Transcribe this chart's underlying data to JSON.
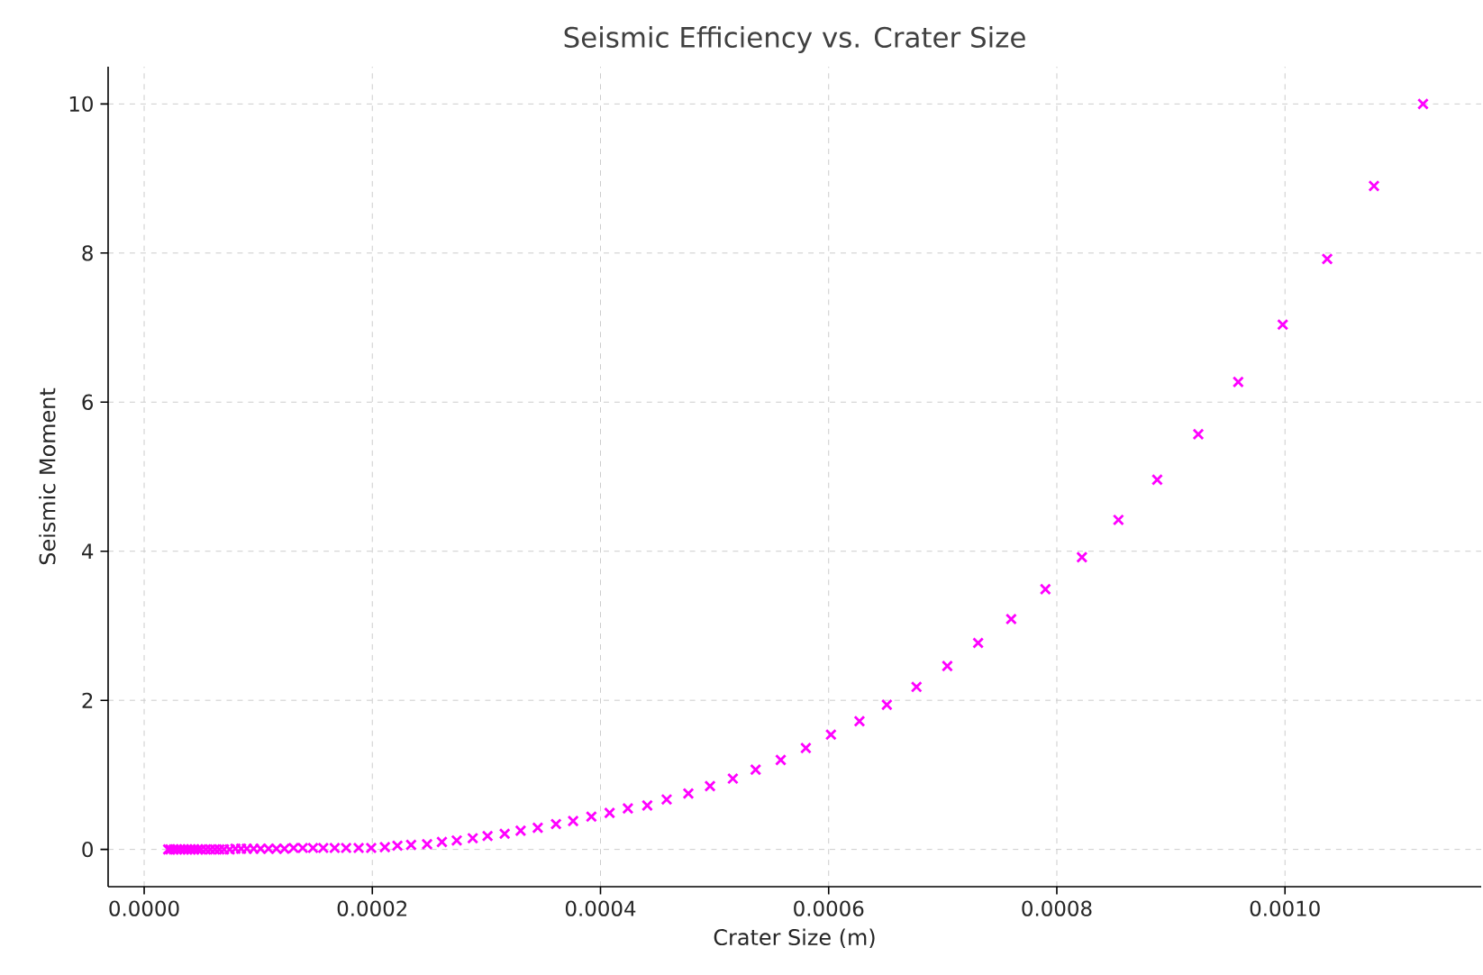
{
  "chart_data": {
    "type": "scatter",
    "title": "Seismic Efficiency vs. Crater Size",
    "xlabel": "Crater Size (m)",
    "ylabel": "Seismic Moment",
    "x": [
      2.1e-05,
      2.3e-05,
      2.6e-05,
      2.9e-05,
      3.2e-05,
      3.5e-05,
      3.8e-05,
      4.1e-05,
      4.4e-05,
      4.7e-05,
      5e-05,
      5.4e-05,
      5.8e-05,
      6.2e-05,
      6.6e-05,
      7e-05,
      7.5e-05,
      8e-05,
      8.5e-05,
      9e-05,
      9.6e-05,
      0.000102,
      0.000109,
      0.000116,
      0.000123,
      0.000131,
      0.000139,
      0.000148,
      0.000157,
      0.000167,
      0.000177,
      0.000188,
      0.000199,
      0.000211,
      0.000222,
      0.000234,
      0.000248,
      0.000261,
      0.000274,
      0.000288,
      0.000301,
      0.000316,
      0.00033,
      0.000345,
      0.000361,
      0.000376,
      0.000392,
      0.000408,
      0.000424,
      0.000441,
      0.000458,
      0.000477,
      0.000496,
      0.000516,
      0.000536,
      0.000558,
      0.00058,
      0.000602,
      0.000627,
      0.000651,
      0.000677,
      0.000704,
      0.000731,
      0.00076,
      0.00079,
      0.000822,
      0.000854,
      0.000888,
      0.000924,
      0.000959,
      0.000998,
      0.001037,
      0.001078,
      0.001121
    ],
    "values": [
      0,
      0,
      0,
      0,
      0,
      0,
      0,
      0,
      0,
      0,
      0,
      0,
      0,
      0,
      0,
      0,
      0,
      0.01,
      0.01,
      0.01,
      0.01,
      0.01,
      0.01,
      0.01,
      0.01,
      0.02,
      0.02,
      0.02,
      0.02,
      0.02,
      0.02,
      0.02,
      0.02,
      0.03,
      0.05,
      0.06,
      0.07,
      0.1,
      0.12,
      0.15,
      0.18,
      0.21,
      0.25,
      0.29,
      0.34,
      0.38,
      0.44,
      0.49,
      0.55,
      0.59,
      0.67,
      0.75,
      0.85,
      0.95,
      1.07,
      1.2,
      1.36,
      1.54,
      1.72,
      1.94,
      2.18,
      2.46,
      2.77,
      3.09,
      3.49,
      3.92,
      4.42,
      4.96,
      5.57,
      6.27,
      7.04,
      7.92,
      8.9,
      10.0
    ],
    "color": "#ff00ff",
    "marker": "cross",
    "grid": true,
    "xlim": [
      -3.16e-05,
      0.001172
    ],
    "ylim": [
      -0.5,
      10.5
    ],
    "xticks": [
      {
        "value": 0,
        "label": "0.0000"
      },
      {
        "value": 0.0002,
        "label": "0.0002"
      },
      {
        "value": 0.0004,
        "label": "0.0004"
      },
      {
        "value": 0.0006,
        "label": "0.0006"
      },
      {
        "value": 0.0008,
        "label": "0.0008"
      },
      {
        "value": 0.001,
        "label": "0.0010"
      }
    ],
    "yticks": [
      0,
      2,
      4,
      6,
      8,
      10
    ]
  }
}
